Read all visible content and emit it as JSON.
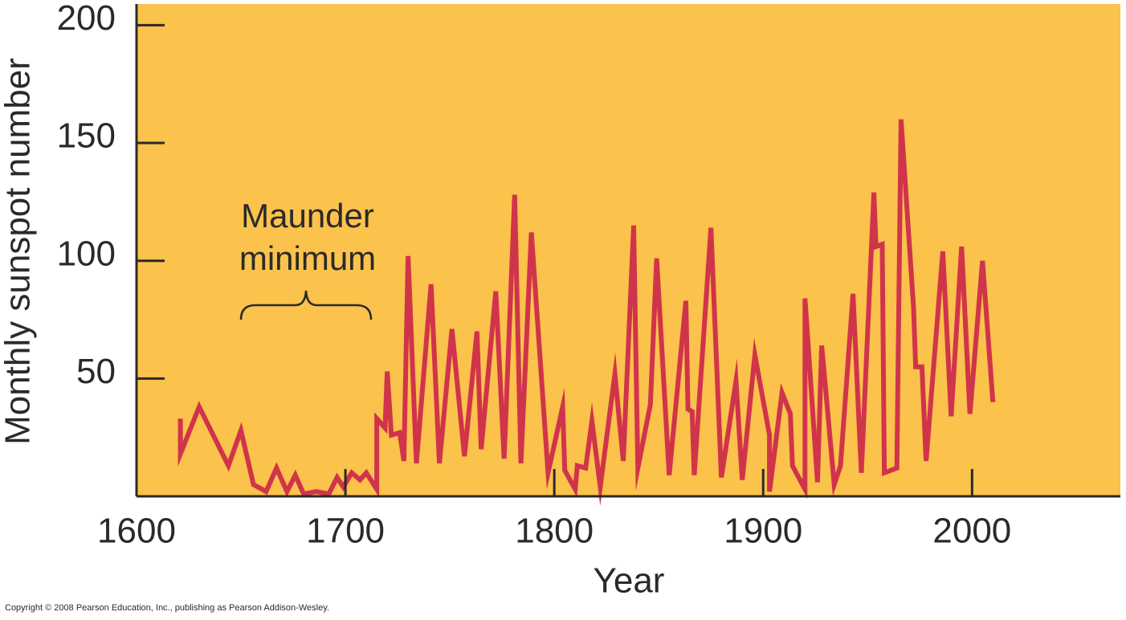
{
  "chart_data": {
    "type": "line",
    "xlabel": "Year",
    "ylabel": "Monthly sunspot number",
    "annotation": [
      "Maunder",
      "minimum"
    ],
    "source": "Copyright © 2008 Pearson Education, Inc., publishing as Pearson Addison-Wesley.",
    "color": "#d0344a",
    "background": "#fbc24c",
    "x": [
      1621,
      1621,
      1630,
      1644,
      1650,
      1656,
      1662,
      1667,
      1672,
      1676,
      1680,
      1686,
      1692,
      1696,
      1699,
      1703,
      1707,
      1710,
      1715,
      1715,
      1719,
      1720,
      1722,
      1726,
      1728,
      1730,
      1734,
      1741,
      1745,
      1751,
      1757,
      1763,
      1765,
      1772,
      1776,
      1781,
      1784,
      1789,
      1797,
      1804,
      1805,
      1810,
      1811,
      1815,
      1818,
      1822,
      1829,
      1833,
      1838,
      1840,
      1846,
      1849,
      1855,
      1863,
      1864,
      1866,
      1867,
      1875,
      1880,
      1887,
      1890,
      1896,
      1903,
      1903,
      1909,
      1913,
      1914,
      1920,
      1920,
      1926,
      1928,
      1934,
      1937,
      1943,
      1947,
      1953,
      1954,
      1957,
      1958,
      1964,
      1966,
      1972,
      1973,
      1976,
      1978,
      1986,
      1990,
      1995,
      1999,
      2005,
      2010
    ],
    "values": [
      33,
      18,
      38,
      13,
      28,
      5,
      2,
      12,
      2,
      9,
      1,
      2,
      1,
      8,
      4,
      10,
      7,
      10,
      3,
      33,
      29,
      53,
      26,
      27,
      15,
      102,
      14,
      90,
      14,
      71,
      17,
      70,
      20,
      87,
      16,
      128,
      14,
      112,
      10,
      38,
      11,
      3,
      13,
      12,
      32,
      4,
      52,
      15,
      115,
      12,
      39,
      101,
      9,
      83,
      37,
      36,
      9,
      114,
      8,
      49,
      7,
      60,
      26,
      2,
      44,
      35,
      13,
      3,
      84,
      6,
      64,
      5,
      13,
      86,
      10,
      129,
      106,
      107,
      10,
      12,
      160,
      80,
      55,
      55,
      15,
      104,
      34,
      106,
      35,
      100,
      40
    ],
    "xlim": [
      1600,
      2071
    ],
    "ylim": [
      0,
      209
    ],
    "xticks": [
      1600,
      1700,
      1800,
      1900,
      2000
    ],
    "yticks": [
      50,
      100,
      150,
      200
    ]
  }
}
